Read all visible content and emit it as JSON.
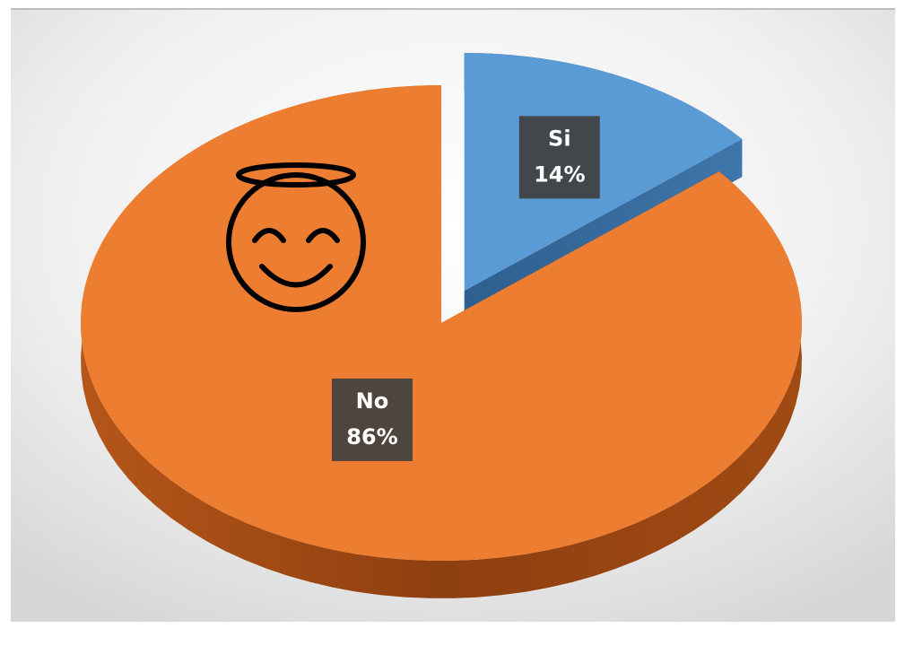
{
  "chart_data": {
    "type": "pie",
    "categories": [
      "Si",
      "No"
    ],
    "values": [
      14,
      86
    ],
    "value_labels": [
      "14%",
      "86%"
    ],
    "colors": [
      "#5b9bd5",
      "#ed7d31"
    ],
    "explode": [
      0.15,
      0
    ],
    "start_angle": 0,
    "style": "3d"
  }
}
